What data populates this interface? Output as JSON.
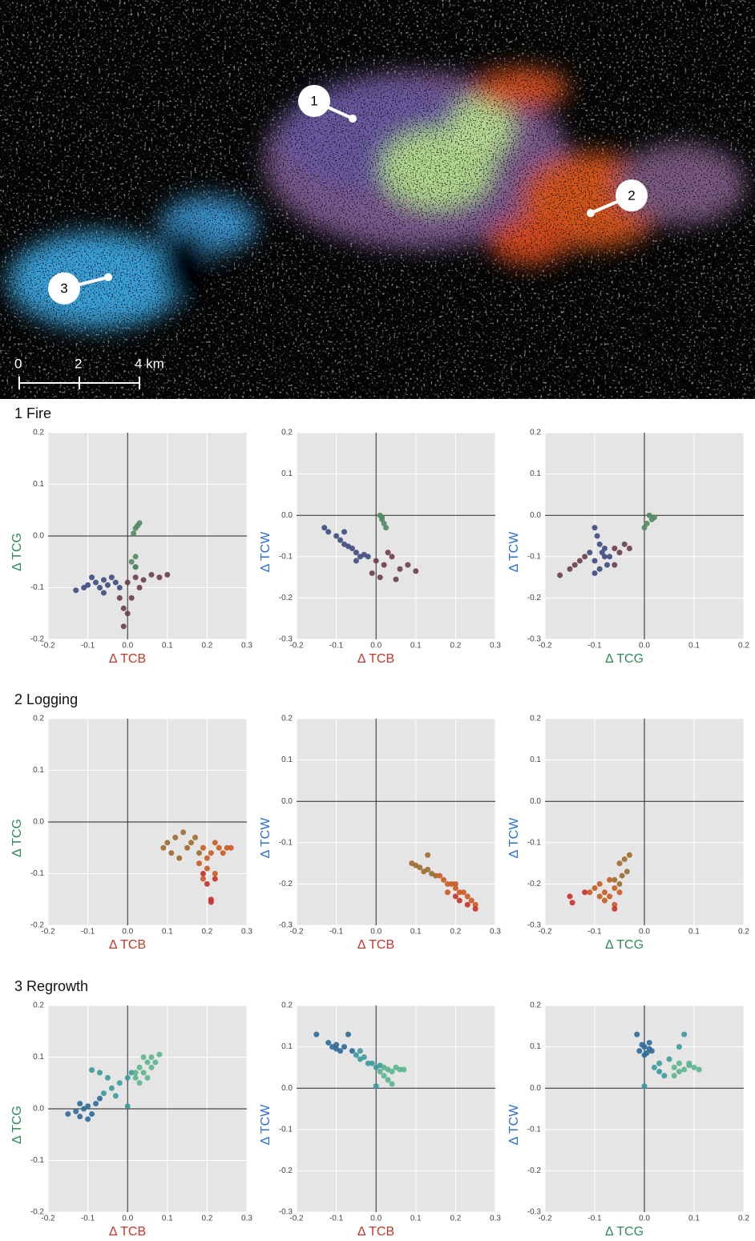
{
  "map": {
    "markers": [
      "1",
      "2",
      "3"
    ],
    "scale_labels": [
      "0",
      "2",
      "4 km"
    ]
  },
  "sections": [
    "1 Fire",
    "2 Logging",
    "3 Regrowth"
  ],
  "chart_data": [
    {
      "type": "scatter",
      "xlabel": "Δ TCB",
      "ylabel": "Δ TCG",
      "xlabel_color": "#c0392b",
      "ylabel_color": "#2e8b57",
      "xlim": [
        -0.2,
        0.3
      ],
      "ylim": [
        -0.2,
        0.2
      ],
      "xticks": [
        -0.2,
        -0.1,
        {
          "value": 0,
          "label": "0.0"
        },
        0.1,
        0.2,
        0.3
      ],
      "yticks": [
        -0.2,
        -0.1,
        {
          "value": 0,
          "label": "0.0"
        },
        0.1,
        0.2
      ],
      "grid": true,
      "zero_lines": true,
      "series": [
        {
          "color": "#3d4a7e",
          "x": [
            -0.13,
            -0.11,
            -0.1,
            -0.08,
            -0.07,
            -0.06,
            -0.05,
            -0.04,
            -0.03,
            -0.09,
            -0.06,
            -0.02
          ],
          "values": [
            -0.105,
            -0.1,
            -0.095,
            -0.09,
            -0.1,
            -0.085,
            -0.095,
            -0.08,
            -0.09,
            -0.08,
            -0.11,
            -0.1
          ]
        },
        {
          "color": "#6b3d4a",
          "x": [
            0,
            0.02,
            0.04,
            0.06,
            0.08,
            0.1,
            0.01,
            0.03,
            -0.01,
            0,
            -0.02,
            0.02,
            -0.01
          ],
          "values": [
            -0.09,
            -0.08,
            -0.085,
            -0.075,
            -0.08,
            -0.075,
            -0.12,
            -0.1,
            -0.14,
            -0.15,
            -0.12,
            -0.06,
            -0.175
          ]
        },
        {
          "color": "#4f8a63",
          "x": [
            0.015,
            0.02,
            0.025,
            0.03,
            0.02,
            0.01,
            0.02
          ],
          "values": [
            0.005,
            0.015,
            0.02,
            0.025,
            -0.04,
            -0.05,
            -0.06
          ]
        }
      ]
    },
    {
      "type": "scatter",
      "xlabel": "Δ TCB",
      "ylabel": "Δ TCW",
      "xlabel_color": "#c0392b",
      "ylabel_color": "#2f6fd0",
      "xlim": [
        -0.2,
        0.3
      ],
      "ylim": [
        -0.3,
        0.2
      ],
      "xticks": [
        -0.2,
        -0.1,
        {
          "value": 0,
          "label": "0.0"
        },
        0.1,
        0.2,
        0.3
      ],
      "yticks": [
        -0.3,
        -0.2,
        -0.1,
        {
          "value": 0,
          "label": "0.0"
        },
        0.1,
        0.2
      ],
      "grid": true,
      "zero_lines": true,
      "series": [
        {
          "color": "#3d4a7e",
          "x": [
            -0.13,
            -0.12,
            -0.1,
            -0.09,
            -0.08,
            -0.07,
            -0.06,
            -0.05,
            -0.04,
            -0.03,
            -0.08,
            -0.05,
            -0.02
          ],
          "values": [
            -0.03,
            -0.04,
            -0.05,
            -0.06,
            -0.07,
            -0.075,
            -0.08,
            -0.09,
            -0.1,
            -0.095,
            -0.04,
            -0.11,
            -0.1
          ]
        },
        {
          "color": "#6b3d4a",
          "x": [
            0,
            0.02,
            0.04,
            0.06,
            0.08,
            0.1,
            -0.01,
            0.01,
            0.03,
            0.05
          ],
          "values": [
            -0.11,
            -0.12,
            -0.1,
            -0.13,
            -0.12,
            -0.135,
            -0.14,
            -0.15,
            -0.09,
            -0.155
          ]
        },
        {
          "color": "#4f8a63",
          "x": [
            0.01,
            0.015,
            0.02,
            0.025,
            0.015
          ],
          "values": [
            0,
            -0.01,
            -0.02,
            -0.03,
            -0.005
          ]
        }
      ]
    },
    {
      "type": "scatter",
      "xlabel": "Δ TCG",
      "ylabel": "Δ TCW",
      "xlabel_color": "#2e8b57",
      "ylabel_color": "#2f6fd0",
      "xlim": [
        -0.2,
        0.2
      ],
      "ylim": [
        -0.3,
        0.2
      ],
      "xticks": [
        -0.2,
        -0.1,
        {
          "value": 0,
          "label": "0.0"
        },
        0.1,
        0.2
      ],
      "yticks": [
        -0.3,
        -0.2,
        -0.1,
        {
          "value": 0,
          "label": "0.0"
        },
        0.1,
        0.2
      ],
      "grid": true,
      "zero_lines": true,
      "series": [
        {
          "color": "#3d4a7e",
          "x": [
            -0.1,
            -0.095,
            -0.09,
            -0.085,
            -0.08,
            -0.075,
            -0.1,
            -0.09,
            -0.08,
            -0.07,
            -0.11,
            -0.1
          ],
          "values": [
            -0.03,
            -0.05,
            -0.07,
            -0.09,
            -0.1,
            -0.12,
            -0.11,
            -0.13,
            -0.08,
            -0.1,
            -0.09,
            -0.14
          ]
        },
        {
          "color": "#6b3d4a",
          "x": [
            -0.17,
            -0.15,
            -0.14,
            -0.13,
            -0.12,
            -0.06,
            -0.05,
            -0.04,
            -0.03,
            -0.06
          ],
          "values": [
            -0.145,
            -0.13,
            -0.12,
            -0.11,
            -0.1,
            -0.08,
            -0.09,
            -0.07,
            -0.08,
            -0.12
          ]
        },
        {
          "color": "#4f8a63",
          "x": [
            0.01,
            0.015,
            0.02,
            0.005,
            0
          ],
          "values": [
            0,
            -0.01,
            -0.005,
            -0.02,
            -0.03
          ]
        }
      ]
    },
    {
      "type": "scatter",
      "xlabel": "Δ TCB",
      "ylabel": "Δ TCG",
      "xlabel_color": "#c0392b",
      "ylabel_color": "#2e8b57",
      "xlim": [
        -0.2,
        0.3
      ],
      "ylim": [
        -0.2,
        0.2
      ],
      "xticks": [
        -0.2,
        -0.1,
        {
          "value": 0,
          "label": "0.0"
        },
        0.1,
        0.2,
        0.3
      ],
      "yticks": [
        -0.2,
        -0.1,
        {
          "value": 0,
          "label": "0.0"
        },
        0.1,
        0.2
      ],
      "grid": true,
      "zero_lines": true,
      "series": [
        {
          "color": "#9a6a30",
          "x": [
            0.09,
            0.1,
            0.11,
            0.12,
            0.14,
            0.15,
            0.16,
            0.17,
            0.18,
            0.13
          ],
          "values": [
            -0.05,
            -0.04,
            -0.06,
            -0.03,
            -0.02,
            -0.05,
            -0.04,
            -0.03,
            -0.06,
            -0.07
          ]
        },
        {
          "color": "#c85a20",
          "x": [
            0.19,
            0.2,
            0.21,
            0.22,
            0.23,
            0.24,
            0.25,
            0.26,
            0.2,
            0.22,
            0.18,
            0.19
          ],
          "values": [
            -0.05,
            -0.07,
            -0.06,
            -0.04,
            -0.05,
            -0.06,
            -0.05,
            -0.05,
            -0.09,
            -0.1,
            -0.08,
            -0.11
          ]
        },
        {
          "color": "#c8302a",
          "x": [
            0.2,
            0.21,
            0.19,
            0.22,
            0.21
          ],
          "values": [
            -0.12,
            -0.15,
            -0.1,
            -0.11,
            -0.155
          ]
        }
      ]
    },
    {
      "type": "scatter",
      "xlabel": "Δ TCB",
      "ylabel": "Δ TCW",
      "xlabel_color": "#c0392b",
      "ylabel_color": "#2f6fd0",
      "xlim": [
        -0.2,
        0.3
      ],
      "ylim": [
        -0.3,
        0.2
      ],
      "xticks": [
        -0.2,
        -0.1,
        {
          "value": 0,
          "label": "0.0"
        },
        0.1,
        0.2,
        0.3
      ],
      "yticks": [
        -0.3,
        -0.2,
        -0.1,
        {
          "value": 0,
          "label": "0.0"
        },
        0.1,
        0.2
      ],
      "grid": true,
      "zero_lines": true,
      "series": [
        {
          "color": "#9a6a30",
          "x": [
            0.09,
            0.1,
            0.11,
            0.12,
            0.13,
            0.14,
            0.15,
            0.13
          ],
          "values": [
            -0.15,
            -0.155,
            -0.16,
            -0.17,
            -0.165,
            -0.175,
            -0.18,
            -0.13
          ]
        },
        {
          "color": "#c85a20",
          "x": [
            0.16,
            0.17,
            0.18,
            0.19,
            0.2,
            0.21,
            0.22,
            0.23,
            0.24,
            0.25,
            0.18,
            0.2
          ],
          "values": [
            -0.18,
            -0.19,
            -0.2,
            -0.2,
            -0.21,
            -0.22,
            -0.22,
            -0.23,
            -0.24,
            -0.25,
            -0.22,
            -0.2
          ]
        },
        {
          "color": "#c8302a",
          "x": [
            0.21,
            0.23,
            0.25,
            0.2
          ],
          "values": [
            -0.24,
            -0.25,
            -0.26,
            -0.23
          ]
        }
      ]
    },
    {
      "type": "scatter",
      "xlabel": "Δ TCG",
      "ylabel": "Δ TCW",
      "xlabel_color": "#2e8b57",
      "ylabel_color": "#2f6fd0",
      "xlim": [
        -0.2,
        0.2
      ],
      "ylim": [
        -0.3,
        0.2
      ],
      "xticks": [
        -0.2,
        -0.1,
        {
          "value": 0,
          "label": "0.0"
        },
        0.1,
        0.2
      ],
      "yticks": [
        -0.3,
        -0.2,
        -0.1,
        {
          "value": 0,
          "label": "0.0"
        },
        0.1,
        0.2
      ],
      "grid": true,
      "zero_lines": true,
      "series": [
        {
          "color": "#9a6a30",
          "x": [
            -0.05,
            -0.04,
            -0.03,
            -0.035,
            -0.045,
            -0.06,
            -0.05
          ],
          "values": [
            -0.15,
            -0.14,
            -0.13,
            -0.17,
            -0.18,
            -0.19,
            -0.2
          ]
        },
        {
          "color": "#c85a20",
          "x": [
            -0.1,
            -0.09,
            -0.08,
            -0.07,
            -0.06,
            -0.08,
            -0.07,
            -0.06,
            -0.05,
            -0.09,
            -0.11
          ],
          "values": [
            -0.21,
            -0.2,
            -0.22,
            -0.19,
            -0.21,
            -0.24,
            -0.23,
            -0.25,
            -0.22,
            -0.23,
            -0.22
          ]
        },
        {
          "color": "#c8302a",
          "x": [
            -0.15,
            -0.145,
            -0.12,
            -0.06
          ],
          "values": [
            -0.23,
            -0.245,
            -0.22,
            -0.26
          ]
        }
      ]
    },
    {
      "type": "scatter",
      "xlabel": "Δ TCB",
      "ylabel": "Δ TCG",
      "xlabel_color": "#c0392b",
      "ylabel_color": "#2e8b57",
      "xlim": [
        -0.2,
        0.3
      ],
      "ylim": [
        -0.2,
        0.2
      ],
      "xticks": [
        -0.2,
        -0.1,
        {
          "value": 0,
          "label": "0.0"
        },
        0.1,
        0.2,
        0.3
      ],
      "yticks": [
        -0.2,
        -0.1,
        {
          "value": 0,
          "label": "0.0"
        },
        0.1,
        0.2
      ],
      "grid": true,
      "zero_lines": true,
      "series": [
        {
          "color": "#2e6a98",
          "x": [
            -0.15,
            -0.13,
            -0.12,
            -0.11,
            -0.1,
            -0.09,
            -0.08,
            -0.12,
            -0.1,
            -0.07
          ],
          "values": [
            -0.01,
            -0.005,
            -0.015,
            0,
            0.005,
            -0.01,
            0.01,
            0.01,
            -0.02,
            0.02
          ]
        },
        {
          "color": "#3a9a9a",
          "x": [
            -0.09,
            -0.07,
            -0.05,
            -0.04,
            -0.02,
            0,
            -0.03,
            0.01,
            -0.06,
            0
          ],
          "values": [
            0.075,
            0.07,
            0.06,
            0.04,
            0.05,
            0.06,
            0.025,
            0.07,
            0.03,
            0.005
          ]
        },
        {
          "color": "#5ab48c",
          "x": [
            0.02,
            0.03,
            0.04,
            0.05,
            0.06,
            0.07,
            0.08,
            0.03,
            0.05,
            0.06,
            0.04,
            0.02
          ],
          "values": [
            0.06,
            0.08,
            0.07,
            0.09,
            0.1,
            0.09,
            0.105,
            0.05,
            0.06,
            0.08,
            0.1,
            0.07
          ]
        }
      ]
    },
    {
      "type": "scatter",
      "xlabel": "Δ TCB",
      "ylabel": "Δ TCW",
      "xlabel_color": "#c0392b",
      "ylabel_color": "#2f6fd0",
      "xlim": [
        -0.2,
        0.3
      ],
      "ylim": [
        -0.3,
        0.2
      ],
      "xticks": [
        -0.2,
        -0.1,
        {
          "value": 0,
          "label": "0.0"
        },
        0.1,
        0.2,
        0.3
      ],
      "yticks": [
        -0.3,
        -0.2,
        -0.1,
        {
          "value": 0,
          "label": "0.0"
        },
        0.1,
        0.2
      ],
      "grid": true,
      "zero_lines": true,
      "series": [
        {
          "color": "#2e6a98",
          "x": [
            -0.15,
            -0.12,
            -0.11,
            -0.1,
            -0.09,
            -0.08,
            -0.07,
            -0.1,
            -0.06
          ],
          "values": [
            0.13,
            0.11,
            0.1,
            0.105,
            0.09,
            0.1,
            0.13,
            0.095,
            0.09
          ]
        },
        {
          "color": "#3a9a9a",
          "x": [
            -0.05,
            -0.04,
            -0.03,
            -0.02,
            -0.01,
            0,
            0.01,
            -0.04,
            0
          ],
          "values": [
            0.08,
            0.07,
            0.075,
            0.06,
            0.06,
            0.05,
            0.055,
            0.09,
            0.005
          ]
        },
        {
          "color": "#5ab48c",
          "x": [
            0.01,
            0.02,
            0.03,
            0.04,
            0.05,
            0.06,
            0.07,
            0.03,
            0.04,
            0.02
          ],
          "values": [
            0.04,
            0.05,
            0.045,
            0.04,
            0.05,
            0.045,
            0.045,
            0.02,
            0.01,
            0.03
          ]
        }
      ]
    },
    {
      "type": "scatter",
      "xlabel": "Δ TCG",
      "ylabel": "Δ TCW",
      "xlabel_color": "#2e8b57",
      "ylabel_color": "#2f6fd0",
      "xlim": [
        -0.2,
        0.2
      ],
      "ylim": [
        -0.3,
        0.2
      ],
      "xticks": [
        -0.2,
        -0.1,
        {
          "value": 0,
          "label": "0.0"
        },
        0.1,
        0.2
      ],
      "yticks": [
        -0.3,
        -0.2,
        -0.1,
        {
          "value": 0,
          "label": "0.0"
        },
        0.1,
        0.2
      ],
      "grid": true,
      "zero_lines": true,
      "series": [
        {
          "color": "#2e6a98",
          "x": [
            -0.01,
            0,
            0.01,
            0.005,
            -0.005,
            0.015,
            0,
            -0.015,
            0.01
          ],
          "values": [
            0.09,
            0.1,
            0.095,
            0.085,
            0.105,
            0.09,
            0.08,
            0.13,
            0.11
          ]
        },
        {
          "color": "#3a9a9a",
          "x": [
            0.02,
            0.03,
            0.04,
            0.05,
            0.03,
            0.08,
            0.07,
            0
          ],
          "values": [
            0.05,
            0.06,
            0.03,
            0.07,
            0.04,
            0.13,
            0.1,
            0.005
          ]
        },
        {
          "color": "#5ab48c",
          "x": [
            0.06,
            0.07,
            0.08,
            0.09,
            0.1,
            0.11,
            0.07,
            0.06,
            0.09
          ],
          "values": [
            0.05,
            0.06,
            0.045,
            0.055,
            0.05,
            0.045,
            0.04,
            0.03,
            0.06
          ]
        }
      ]
    }
  ]
}
